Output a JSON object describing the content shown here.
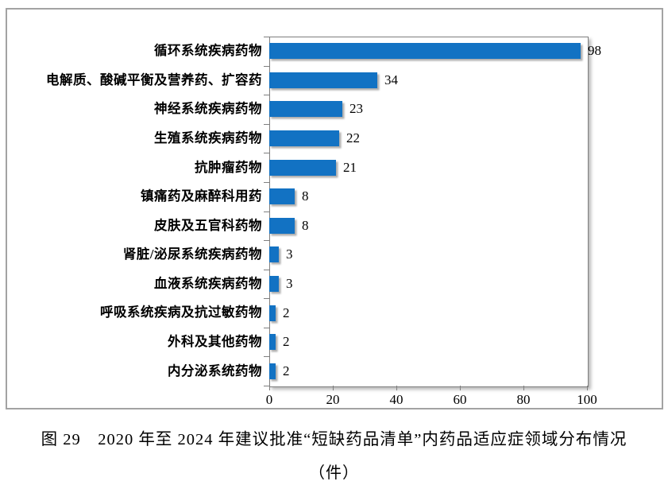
{
  "figure": {
    "caption_line1": "图 29　2020 年至 2024 年建议批准“短缺药品清单”内药品适应症领域分布情况",
    "caption_line2": "（件）"
  },
  "chart_data": {
    "type": "bar",
    "orientation": "horizontal",
    "title": "",
    "xlabel": "",
    "ylabel": "",
    "categories": [
      "循环系统疾病药物",
      "电解质、酸碱平衡及营养药、扩容药",
      "神经系统疾病药物",
      "生殖系统疾病药物",
      "抗肿瘤药物",
      "镇痛药及麻醉科用药",
      "皮肤及五官科药物",
      "肾脏/泌尿系统疾病药物",
      "血液系统疾病药物",
      "呼吸系统疾病及抗过敏药物",
      "外科及其他药物",
      "内分泌系统药物"
    ],
    "values": [
      98,
      34,
      23,
      22,
      21,
      8,
      8,
      3,
      3,
      2,
      2,
      2
    ],
    "value_labels_shown": true,
    "x_ticks": [
      0,
      20,
      40,
      60,
      80,
      100
    ],
    "xlim": [
      0,
      100
    ],
    "grid": false,
    "legend": false,
    "bar_color": "#1272c3",
    "frame_border_color": "#a3a3a3",
    "axis_color": "#7f7f7f"
  }
}
